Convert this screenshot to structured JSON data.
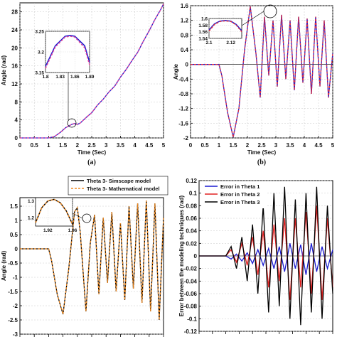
{
  "chart_data": [
    {
      "id": "a",
      "type": "line",
      "panel_label": "(a)",
      "xlabel": "Time (Sec)",
      "ylabel": "Angle (rad)",
      "xlim": [
        0,
        5
      ],
      "ylim": [
        0,
        30
      ],
      "x_ticks": [
        "0",
        "0.5",
        "1",
        "1.5",
        "2",
        "2.5",
        "3",
        "3.5",
        "4",
        "4.5",
        "5"
      ],
      "y_ticks": [
        "0",
        "4",
        "8",
        "12",
        "16",
        "20",
        "24",
        "28"
      ],
      "y_tick_values": [
        0,
        4,
        8,
        12,
        16,
        20,
        24,
        28
      ],
      "series": [
        {
          "color": "#1a1ad0",
          "style": "solid",
          "x": [
            0,
            1,
            1.2,
            1.4,
            1.6,
            1.8,
            1.9,
            2.0,
            2.1,
            2.3,
            2.5,
            2.7,
            2.9,
            3.1,
            3.3,
            3.5,
            3.7,
            3.9,
            4.1,
            4.3,
            4.5,
            4.7,
            4.9,
            5.0
          ],
          "y": [
            0,
            0,
            0.3,
            1.2,
            2.3,
            3.0,
            3.2,
            3.0,
            3.3,
            4.5,
            5.6,
            7.3,
            8.6,
            10.2,
            11.5,
            13.5,
            15.2,
            17.2,
            19.0,
            21.5,
            23.8,
            26.3,
            28.5,
            29.8
          ]
        },
        {
          "color": "#e0409c",
          "style": "dashed",
          "x": [
            0,
            1,
            1.2,
            1.4,
            1.6,
            1.8,
            1.9,
            2.0,
            2.1,
            2.3,
            2.5,
            2.7,
            2.9,
            3.1,
            3.3,
            3.5,
            3.7,
            3.9,
            4.1,
            4.3,
            4.5,
            4.7,
            4.9,
            5.0
          ],
          "y": [
            0,
            0,
            0.3,
            1.2,
            2.3,
            3.0,
            3.2,
            3.0,
            3.3,
            4.5,
            5.6,
            7.3,
            8.6,
            10.2,
            11.5,
            13.5,
            15.2,
            17.2,
            19.0,
            21.5,
            23.8,
            26.3,
            28.5,
            29.8
          ]
        }
      ],
      "inset": {
        "xlim": [
          1.8,
          1.89
        ],
        "ylim": [
          3.15,
          3.25
        ],
        "x_ticks": [
          "1.8",
          "1.83",
          "1.86",
          "1.89"
        ],
        "x_tick_values": [
          1.8,
          1.83,
          1.86,
          1.89
        ],
        "y_ticks": [
          "3.15",
          "3.2",
          "3.25"
        ],
        "y_tick_values": [
          3.15,
          3.2,
          3.25
        ],
        "series": [
          {
            "color": "#1a1ad0",
            "style": "solid",
            "x": [
              1.8,
              1.82,
              1.84,
              1.85,
              1.86,
              1.88,
              1.89
            ],
            "y": [
              3.165,
              3.215,
              3.238,
              3.24,
              3.238,
              3.215,
              3.175
            ]
          },
          {
            "color": "#e0409c",
            "style": "dashed",
            "x": [
              1.8,
              1.82,
              1.84,
              1.85,
              1.86,
              1.88,
              1.89
            ],
            "y": [
              3.16,
              3.212,
              3.236,
              3.238,
              3.236,
              3.21,
              3.168
            ]
          }
        ]
      }
    },
    {
      "id": "b",
      "type": "line",
      "panel_label": "(b)",
      "xlabel": "Time (Sec)",
      "ylabel": "Angle",
      "xlim": [
        0,
        5
      ],
      "ylim": [
        -2,
        1.6
      ],
      "x_ticks": [
        "0",
        "0.5",
        "1",
        "1.5",
        "2",
        "2.5",
        "3",
        "3.5",
        "4",
        "4.5",
        "5"
      ],
      "y_ticks": [
        "-2",
        "-1.6",
        "-1.2",
        "-0.8",
        "-0.4",
        "0",
        "0.4",
        "0.8",
        "1.2",
        "1.6"
      ],
      "y_tick_values": [
        -2,
        -1.6,
        -1.2,
        -0.8,
        -0.4,
        0,
        0.4,
        0.8,
        1.2,
        1.6
      ],
      "series": [
        {
          "color": "#1a1ad0",
          "style": "solid",
          "x": [
            0,
            1,
            1.1,
            1.3,
            1.5,
            1.7,
            1.9,
            2.1,
            2.3,
            2.45,
            2.6,
            2.75,
            2.9,
            3.05,
            3.2,
            3.35,
            3.5,
            3.65,
            3.8,
            3.95,
            4.1,
            4.25,
            4.4,
            4.55,
            4.7,
            4.85,
            5.0
          ],
          "y": [
            0,
            0,
            -0.3,
            -1.3,
            -1.98,
            -1.2,
            0.4,
            1.58,
            0.3,
            -0.9,
            1.3,
            -0.3,
            1.2,
            -0.6,
            1.35,
            -0.4,
            1.2,
            -0.7,
            1.3,
            -0.5,
            1.25,
            -0.8,
            1.3,
            -0.6,
            1.2,
            -0.9,
            0.3
          ]
        },
        {
          "color": "#e03040",
          "style": "dashed",
          "x": [
            0,
            1,
            1.1,
            1.3,
            1.5,
            1.7,
            1.9,
            2.1,
            2.3,
            2.45,
            2.6,
            2.75,
            2.9,
            3.05,
            3.2,
            3.35,
            3.5,
            3.65,
            3.8,
            3.95,
            4.1,
            4.25,
            4.4,
            4.55,
            4.7,
            4.85,
            5.0
          ],
          "y": [
            0,
            0,
            -0.3,
            -1.3,
            -1.98,
            -1.2,
            0.4,
            1.58,
            0.3,
            -0.9,
            1.3,
            -0.3,
            1.2,
            -0.6,
            1.35,
            -0.4,
            1.2,
            -0.7,
            1.3,
            -0.5,
            1.25,
            -0.8,
            1.3,
            -0.6,
            1.2,
            -0.9,
            0.3
          ]
        }
      ],
      "inset": {
        "xlim": [
          2.1,
          2.13
        ],
        "ylim": [
          1.54,
          1.6
        ],
        "x_ticks": [
          "2.1",
          "2.12"
        ],
        "x_tick_values": [
          2.1,
          2.12
        ],
        "y_ticks": [
          "1.54",
          "1.56",
          "1.58",
          "1.6"
        ],
        "y_tick_values": [
          1.54,
          1.56,
          1.58,
          1.6
        ],
        "series": [
          {
            "color": "#1a1ad0",
            "style": "solid",
            "x": [
              2.1,
              2.105,
              2.11,
              2.115,
              2.12,
              2.125,
              2.13
            ],
            "y": [
              1.565,
              1.584,
              1.592,
              1.594,
              1.592,
              1.582,
              1.563
            ]
          },
          {
            "color": "#e03040",
            "style": "dashed",
            "x": [
              2.1,
              2.105,
              2.11,
              2.115,
              2.12,
              2.125,
              2.13
            ],
            "y": [
              1.562,
              1.582,
              1.591,
              1.593,
              1.591,
              1.58,
              1.56
            ]
          }
        ]
      }
    },
    {
      "id": "c",
      "type": "line",
      "xlabel": "",
      "ylabel": "Angle (rad)",
      "xlim": [
        0,
        5
      ],
      "ylim": [
        -3,
        1.8
      ],
      "x_ticks": [],
      "y_ticks": [
        "-3",
        "-2.5",
        "-2",
        "-1.5",
        "-1",
        "-0.5",
        "0",
        "0.5",
        "1",
        "1.5"
      ],
      "y_tick_values": [
        -3,
        -2.5,
        -2,
        -1.5,
        -1,
        -0.5,
        0,
        0.5,
        1,
        1.5
      ],
      "legend": [
        "Theta 3- Simscape model",
        "Theta 3- Mathematical model"
      ],
      "series": [
        {
          "name": "Theta 3- Simscape model",
          "color": "#000000",
          "style": "solid",
          "x": [
            0,
            1,
            1.1,
            1.3,
            1.5,
            1.7,
            1.9,
            2.0,
            2.1,
            2.3,
            2.45,
            2.6,
            2.75,
            2.9,
            3.05,
            3.2,
            3.35,
            3.5,
            3.65,
            3.8,
            3.95,
            4.1,
            4.25,
            4.4,
            4.55,
            4.7,
            4.85,
            5.0
          ],
          "y": [
            0,
            0,
            -0.4,
            -1.6,
            -2.3,
            -0.7,
            1.3,
            1.45,
            0.6,
            -2.2,
            0.2,
            1.2,
            -1.6,
            1.1,
            -1.2,
            1.3,
            -1.5,
            0.9,
            -1.8,
            1.5,
            -1.4,
            1.6,
            -1.9,
            1.7,
            -2.2,
            1.6,
            -2.5,
            1.1
          ]
        },
        {
          "name": "Theta 3- Mathematical model",
          "color": "#f08a20",
          "style": "dashed",
          "x": [
            0,
            1,
            1.1,
            1.3,
            1.5,
            1.7,
            1.9,
            2.0,
            2.1,
            2.3,
            2.45,
            2.6,
            2.75,
            2.9,
            3.05,
            3.2,
            3.35,
            3.5,
            3.65,
            3.8,
            3.95,
            4.1,
            4.25,
            4.4,
            4.55,
            4.7,
            4.85,
            5.0
          ],
          "y": [
            0,
            0,
            -0.4,
            -1.6,
            -2.3,
            -0.7,
            1.3,
            1.45,
            0.6,
            -2.2,
            0.2,
            1.2,
            -1.6,
            1.1,
            -1.2,
            1.3,
            -1.5,
            0.9,
            -1.8,
            1.5,
            -1.4,
            1.6,
            -1.9,
            1.7,
            -2.2,
            1.6,
            -2.5,
            1.1
          ]
        }
      ],
      "inset": {
        "xlim": [
          1.9,
          1.96
        ],
        "ylim": [
          1.15,
          1.32
        ],
        "x_ticks": [
          "1.92",
          "1.96"
        ],
        "x_tick_values": [
          1.92,
          1.96
        ],
        "y_ticks": [
          "1.2",
          "1.3"
        ],
        "y_tick_values": [
          1.2,
          1.3
        ],
        "series": [
          {
            "color": "#000000",
            "style": "solid",
            "x": [
              1.9,
              1.91,
              1.92,
              1.93,
              1.94,
              1.95,
              1.96
            ],
            "y": [
              1.17,
              1.26,
              1.3,
              1.31,
              1.29,
              1.24,
              1.16
            ]
          },
          {
            "color": "#f08a20",
            "style": "dashed",
            "x": [
              1.9,
              1.91,
              1.92,
              1.93,
              1.94,
              1.95,
              1.96
            ],
            "y": [
              1.17,
              1.26,
              1.3,
              1.31,
              1.29,
              1.24,
              1.16
            ]
          }
        ]
      }
    },
    {
      "id": "d",
      "type": "line",
      "xlabel": "",
      "ylabel": "Error between the modeling techniques (rad)",
      "xlim": [
        0,
        5
      ],
      "ylim": [
        -0.12,
        0.12
      ],
      "x_ticks": [],
      "y_ticks": [
        "0.12",
        "0.1",
        "0.08",
        "0.06",
        "0.04",
        "0.02",
        "0",
        "-0.02",
        "-0.04",
        "-0.06",
        "-0.08",
        "-0.1",
        "-0.12"
      ],
      "y_tick_values": [
        0.12,
        0.1,
        0.08,
        0.06,
        0.04,
        0.02,
        0,
        -0.02,
        -0.04,
        -0.06,
        -0.08,
        -0.1,
        -0.12
      ],
      "legend": [
        "Error in Theta 1",
        "Error in Theta 2",
        "Error in Theta 3"
      ],
      "series": [
        {
          "name": "Error in Theta 1",
          "color": "#1a1ad0",
          "style": "solid",
          "x": [
            0,
            1.0,
            1.2,
            1.4,
            1.6,
            1.8,
            2.0,
            2.2,
            2.4,
            2.6,
            2.8,
            3.0,
            3.2,
            3.4,
            3.6,
            3.8,
            4.0,
            4.2,
            4.4,
            4.6,
            4.8,
            5.0
          ],
          "y": [
            0,
            0,
            -0.005,
            0.003,
            -0.008,
            0.005,
            -0.012,
            0.01,
            -0.015,
            0.012,
            -0.02,
            0.015,
            -0.025,
            0.02,
            -0.02,
            0.018,
            -0.03,
            0.02,
            -0.025,
            0.015,
            -0.02,
            0.01
          ]
        },
        {
          "name": "Error in Theta 2",
          "color": "#e02020",
          "style": "solid",
          "x": [
            0,
            1.0,
            1.2,
            1.4,
            1.6,
            1.8,
            2.0,
            2.2,
            2.4,
            2.6,
            2.8,
            3.0,
            3.2,
            3.4,
            3.6,
            3.8,
            4.0,
            4.2,
            4.4,
            4.6,
            4.8,
            5.0
          ],
          "y": [
            0,
            0,
            0.01,
            -0.01,
            0.02,
            -0.015,
            0.03,
            -0.03,
            0.04,
            -0.05,
            0.05,
            -0.04,
            0.06,
            -0.07,
            0.06,
            -0.05,
            0.07,
            -0.06,
            0.08,
            -0.07,
            0.06,
            -0.05
          ]
        },
        {
          "name": "Error in Theta 3",
          "color": "#000000",
          "style": "solid",
          "x": [
            0,
            1.0,
            1.2,
            1.4,
            1.6,
            1.8,
            2.0,
            2.2,
            2.4,
            2.6,
            2.8,
            3.0,
            3.2,
            3.4,
            3.6,
            3.8,
            4.0,
            4.2,
            4.4,
            4.6,
            4.8,
            5.0
          ],
          "y": [
            0,
            0,
            0.015,
            -0.02,
            0.03,
            -0.04,
            0.05,
            -0.06,
            0.08,
            -0.09,
            0.1,
            -0.08,
            0.11,
            -0.1,
            0.09,
            -0.11,
            0.1,
            -0.09,
            0.11,
            -0.1,
            0.08,
            -0.06
          ]
        }
      ]
    }
  ]
}
